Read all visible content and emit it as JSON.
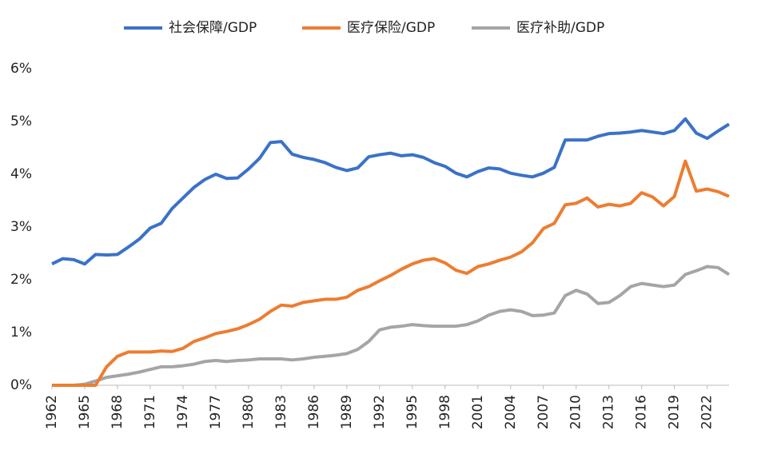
{
  "chart_data": {
    "type": "line",
    "x": [
      1962,
      1963,
      1964,
      1965,
      1966,
      1967,
      1968,
      1969,
      1970,
      1971,
      1972,
      1973,
      1974,
      1975,
      1976,
      1977,
      1978,
      1979,
      1980,
      1981,
      1982,
      1983,
      1984,
      1985,
      1986,
      1987,
      1988,
      1989,
      1990,
      1991,
      1992,
      1993,
      1994,
      1995,
      1996,
      1997,
      1998,
      1999,
      2000,
      2001,
      2002,
      2003,
      2004,
      2005,
      2006,
      2007,
      2008,
      2009,
      2010,
      2011,
      2012,
      2013,
      2014,
      2015,
      2016,
      2017,
      2018,
      2019,
      2020,
      2021,
      2022,
      2023,
      2024
    ],
    "series": [
      {
        "name": "社会保障/GDP",
        "color": "#3a72c8",
        "values": [
          2.3,
          2.4,
          2.38,
          2.3,
          2.48,
          2.47,
          2.48,
          2.62,
          2.77,
          2.98,
          3.07,
          3.35,
          3.55,
          3.75,
          3.9,
          4.0,
          3.92,
          3.93,
          4.1,
          4.3,
          4.6,
          4.62,
          4.38,
          4.32,
          4.28,
          4.22,
          4.13,
          4.07,
          4.12,
          4.33,
          4.37,
          4.4,
          4.35,
          4.37,
          4.32,
          4.22,
          4.15,
          4.02,
          3.95,
          4.05,
          4.12,
          4.1,
          4.02,
          3.98,
          3.95,
          4.02,
          4.13,
          4.65,
          4.65,
          4.65,
          4.72,
          4.77,
          4.78,
          4.8,
          4.83,
          4.8,
          4.77,
          4.83,
          5.05,
          4.78,
          4.68,
          4.82,
          4.95
        ]
      },
      {
        "name": "医疗保险/GDP",
        "color": "#ed7d31",
        "values": [
          0,
          0,
          0,
          0,
          0,
          0.35,
          0.55,
          0.63,
          0.63,
          0.63,
          0.65,
          0.64,
          0.7,
          0.83,
          0.9,
          0.98,
          1.02,
          1.07,
          1.15,
          1.25,
          1.4,
          1.52,
          1.5,
          1.57,
          1.6,
          1.63,
          1.63,
          1.67,
          1.8,
          1.87,
          1.98,
          2.08,
          2.2,
          2.3,
          2.37,
          2.4,
          2.32,
          2.18,
          2.12,
          2.25,
          2.3,
          2.37,
          2.43,
          2.53,
          2.7,
          2.97,
          3.07,
          3.42,
          3.45,
          3.55,
          3.38,
          3.43,
          3.4,
          3.45,
          3.65,
          3.57,
          3.4,
          3.58,
          4.25,
          3.68,
          3.72,
          3.67,
          3.58
        ]
      },
      {
        "name": "医疗补助/GDP",
        "color": "#a5a5a5",
        "values": [
          0,
          0,
          0,
          0.02,
          0.08,
          0.15,
          0.18,
          0.21,
          0.25,
          0.3,
          0.35,
          0.35,
          0.37,
          0.4,
          0.45,
          0.47,
          0.45,
          0.47,
          0.48,
          0.5,
          0.5,
          0.5,
          0.48,
          0.5,
          0.53,
          0.55,
          0.57,
          0.6,
          0.68,
          0.83,
          1.05,
          1.1,
          1.12,
          1.15,
          1.13,
          1.12,
          1.12,
          1.12,
          1.15,
          1.22,
          1.33,
          1.4,
          1.43,
          1.4,
          1.32,
          1.33,
          1.37,
          1.7,
          1.8,
          1.73,
          1.55,
          1.57,
          1.7,
          1.87,
          1.93,
          1.9,
          1.87,
          1.9,
          2.1,
          2.17,
          2.25,
          2.23,
          2.1
        ]
      }
    ],
    "xlim": [
      1962,
      2024
    ],
    "xticks": [
      1962,
      1965,
      1968,
      1971,
      1974,
      1977,
      1980,
      1983,
      1986,
      1989,
      1992,
      1995,
      1998,
      2001,
      2004,
      2007,
      2010,
      2013,
      2016,
      2019,
      2022
    ],
    "ylim": [
      0,
      6
    ],
    "yticks": [
      {
        "value": 0,
        "label": "0%"
      },
      {
        "value": 1,
        "label": "1%"
      },
      {
        "value": 2,
        "label": "2%"
      },
      {
        "value": 3,
        "label": "3%"
      },
      {
        "value": 4,
        "label": "4%"
      },
      {
        "value": 5,
        "label": "5%"
      },
      {
        "value": 6,
        "label": "6%"
      }
    ],
    "legend": "top"
  }
}
